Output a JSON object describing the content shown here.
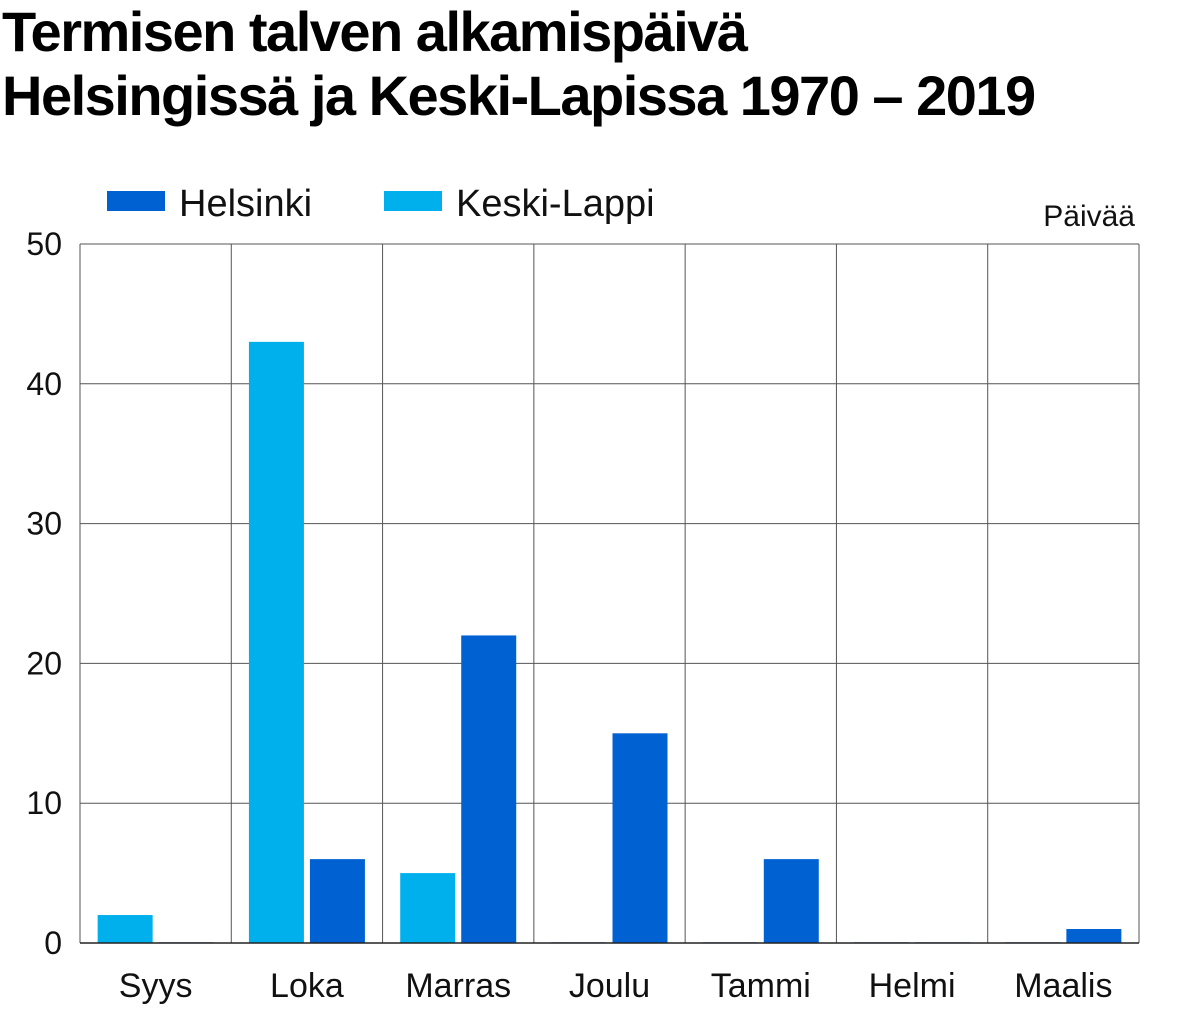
{
  "title_lines": [
    "Termisen talven alkamispäivä",
    "Helsingissä ja Keski-Lapissa 1970 – 2019"
  ],
  "chart_data": {
    "type": "bar",
    "title": "Termisen talven alkamispäivä Helsingissä ja Keski-Lapissa 1970 – 2019",
    "ylabel": "Päivää",
    "xlabel": "",
    "categories": [
      "Syys",
      "Loka",
      "Marras",
      "Joulu",
      "Tammi",
      "Helmi",
      "Maalis"
    ],
    "series": [
      {
        "name": "Keski-Lappi",
        "color": "#00b0ec",
        "values": [
          2,
          43,
          5,
          0,
          0,
          0,
          0
        ]
      },
      {
        "name": "Helsinki",
        "color": "#0062d2",
        "values": [
          0,
          6,
          22,
          15,
          6,
          0,
          1
        ]
      }
    ],
    "legend_order": [
      "Helsinki",
      "Keski-Lappi"
    ],
    "legend_position": "top-left",
    "ylim": [
      0,
      50
    ],
    "yticks": [
      0,
      10,
      20,
      30,
      40,
      50
    ],
    "grid": true
  }
}
